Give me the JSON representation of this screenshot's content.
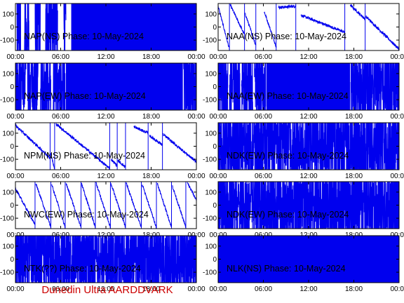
{
  "footer": {
    "text": "Dunedin Ultra AARDDVARK",
    "color": "#cc0000"
  },
  "colors": {
    "trace": "#0000ee",
    "frame": "#000000",
    "background": "#ffffff"
  },
  "chart_data": [
    {
      "type": "line",
      "title": "NAP(NS) Phase: 10-May-2024",
      "xlabel": "",
      "ylabel": "",
      "ylim": [
        -180,
        180
      ],
      "yticks": [
        -100,
        0,
        100
      ],
      "xlim": [
        0,
        24
      ],
      "xtick_labels": [
        "00:00",
        "06:00",
        "12:00",
        "18:00",
        "00:00"
      ],
      "series": [
        {
          "style": "noise",
          "segments": [
            [
              0.2,
              0.7,
              -60
            ],
            [
              1.2,
              1.8,
              -90
            ],
            [
              2.6,
              3.3,
              60
            ],
            [
              4.0,
              5.6,
              40
            ],
            [
              6.4,
              6.7,
              120
            ]
          ],
          "solid": [
            [
              7.4,
              24
            ]
          ]
        }
      ]
    },
    {
      "type": "line",
      "title": "NAA(NS) Phase: 10-May-2024",
      "xlabel": "",
      "ylabel": "",
      "ylim": [
        -180,
        180
      ],
      "yticks": [
        -100,
        0,
        100
      ],
      "xlim": [
        0,
        24
      ],
      "xtick_labels": [
        "00:00",
        "06:00",
        "12:00",
        "18:00",
        "00:00"
      ],
      "series": [
        {
          "style": "drift",
          "segments": [
            [
              0,
              1.5,
              160,
              -170
            ],
            [
              1.6,
              3.5,
              170,
              -60
            ],
            [
              3.6,
              5.0,
              100,
              -140
            ],
            [
              6.1,
              7.7,
              120,
              -150
            ],
            [
              8.0,
              10.3,
              150,
              160
            ],
            [
              11.0,
              16.8,
              90,
              -40
            ],
            [
              17.5,
              19.5,
              170,
              60
            ],
            [
              19.6,
              24,
              80,
              -170
            ]
          ]
        }
      ]
    },
    {
      "type": "line",
      "title": "NAP(EW) Phase: 10-May-2024",
      "xlabel": "",
      "ylabel": "",
      "ylim": [
        -180,
        180
      ],
      "yticks": [
        -100,
        0,
        100
      ],
      "xlim": [
        0,
        24
      ],
      "xtick_labels": [
        "00:00",
        "06:00",
        "12:00",
        "18:00",
        "00:00"
      ],
      "series": [
        {
          "style": "noise",
          "segments": [
            [
              0,
              1.4,
              0
            ],
            [
              1.6,
              3.0,
              20
            ],
            [
              3.3,
              4.7,
              -20
            ],
            [
              5.0,
              6.6,
              30
            ],
            [
              22.3,
              24,
              0
            ]
          ],
          "solid": [
            [
              6.7,
              22.2
            ]
          ]
        }
      ]
    },
    {
      "type": "line",
      "title": "NAA(EW) Phase: 10-May-2024",
      "xlabel": "",
      "ylabel": "",
      "ylim": [
        -180,
        180
      ],
      "yticks": [
        -100,
        0,
        100
      ],
      "xlim": [
        0,
        24
      ],
      "xtick_labels": [
        "00:00",
        "06:00",
        "12:00",
        "18:00",
        "00:00"
      ],
      "series": [
        {
          "style": "noise",
          "segments": [
            [
              0,
              1.3,
              40
            ],
            [
              1.5,
              2.9,
              -40
            ],
            [
              3.1,
              4.6,
              20
            ],
            [
              4.8,
              6.3,
              -20
            ],
            [
              17.6,
              24,
              10
            ]
          ],
          "solid": [
            [
              6.4,
              17.5
            ]
          ]
        }
      ]
    },
    {
      "type": "line",
      "title": "NPM(NS) Phase: 10-May-2024",
      "xlabel": "",
      "ylabel": "",
      "ylim": [
        -180,
        180
      ],
      "yticks": [
        -100,
        0,
        100
      ],
      "xlim": [
        0,
        24
      ],
      "xtick_labels": [
        "00:00",
        "06:00",
        "12:00",
        "18:00",
        "00:00"
      ],
      "series": [
        {
          "style": "drift",
          "segments": [
            [
              0,
              4.6,
              160,
              -90
            ],
            [
              4.7,
              5.2,
              -60,
              -180
            ],
            [
              5.4,
              12.5,
              170,
              -170
            ],
            [
              12.7,
              13.5,
              -100,
              -150
            ],
            [
              13.6,
              14.6,
              -110,
              -160
            ],
            [
              15.7,
              17.6,
              150,
              100
            ],
            [
              17.8,
              19.5,
              80,
              10
            ],
            [
              19.6,
              24,
              90,
              -120
            ]
          ]
        }
      ]
    },
    {
      "type": "line",
      "title": "NDK(EW) Phase: 10-May-2024",
      "xlabel": "",
      "ylabel": "",
      "ylim": [
        -180,
        180
      ],
      "yticks": [
        -100,
        0,
        100
      ],
      "xlim": [
        0,
        24
      ],
      "xtick_labels": [
        "00:00",
        "06:00",
        "12:00",
        "18:00",
        "00:00"
      ],
      "series": [
        {
          "style": "noise",
          "segments": [
            [
              0,
              24,
              0
            ]
          ]
        }
      ]
    },
    {
      "type": "line",
      "title": "NWC(EW) Phase: 10-May-2024",
      "xlabel": "",
      "ylabel": "",
      "ylim": [
        -180,
        180
      ],
      "yticks": [
        -100,
        0,
        100
      ],
      "xlim": [
        0,
        24
      ],
      "xtick_labels": [
        "00:00",
        "06:00",
        "12:00",
        "18:00",
        "00:00"
      ],
      "series": [
        {
          "style": "drift",
          "segments": [
            [
              0,
              2.6,
              130,
              -150
            ],
            [
              2.7,
              4.7,
              170,
              -170
            ],
            [
              4.8,
              6.6,
              160,
              -170
            ],
            [
              6.7,
              8.7,
              170,
              -170
            ],
            [
              8.8,
              10.6,
              160,
              -170
            ],
            [
              10.7,
              12.6,
              170,
              -170
            ],
            [
              12.7,
              14.6,
              160,
              -170
            ],
            [
              14.7,
              16.7,
              170,
              -170
            ],
            [
              16.8,
              18.7,
              160,
              -170
            ],
            [
              18.8,
              20.7,
              170,
              -170
            ],
            [
              20.8,
              22.6,
              150,
              -170
            ],
            [
              22.8,
              24,
              170,
              40
            ]
          ]
        }
      ]
    },
    {
      "type": "line",
      "title": "NDK(EW) Phase: 10-May-2024",
      "xlabel": "",
      "ylabel": "",
      "ylim": [
        -180,
        180
      ],
      "yticks": [
        -100,
        0,
        100
      ],
      "xlim": [
        0,
        24
      ],
      "xtick_labels": [
        "00:00",
        "06:00",
        "12:00",
        "18:00",
        "00:00"
      ],
      "series": [
        {
          "style": "noise",
          "segments": [
            [
              0,
              24,
              0
            ]
          ]
        }
      ]
    },
    {
      "type": "line",
      "title": "NTK(??) Phase: 10-May-2024",
      "xlabel": "",
      "ylabel": "",
      "ylim": [
        -180,
        180
      ],
      "yticks": [
        -100,
        0,
        100
      ],
      "xlim": [
        0,
        24
      ],
      "xtick_labels": [
        "00:00",
        "06:00",
        "12:00",
        "18:00",
        "00:00"
      ],
      "series": [
        {
          "style": "noise",
          "segments": [
            [
              0,
              24,
              0
            ]
          ]
        }
      ]
    },
    {
      "type": "line",
      "title": "NLK(NS) Phase: 10-May-2024",
      "xlabel": "",
      "ylabel": "",
      "ylim": [
        -180,
        180
      ],
      "yticks": [
        -100,
        0,
        100
      ],
      "xlim": [
        0,
        24
      ],
      "xtick_labels": [
        "00:00",
        "06:00",
        "12:00",
        "18:00",
        "00:00"
      ],
      "series": [
        {
          "style": "noise",
          "segments": [
            [
              5.0,
              5.8,
              60
            ],
            [
              6.3,
              6.7,
              80
            ],
            [
              20.5,
              21.0,
              20
            ]
          ],
          "solid": [
            [
              0,
              24
            ]
          ]
        }
      ]
    }
  ]
}
